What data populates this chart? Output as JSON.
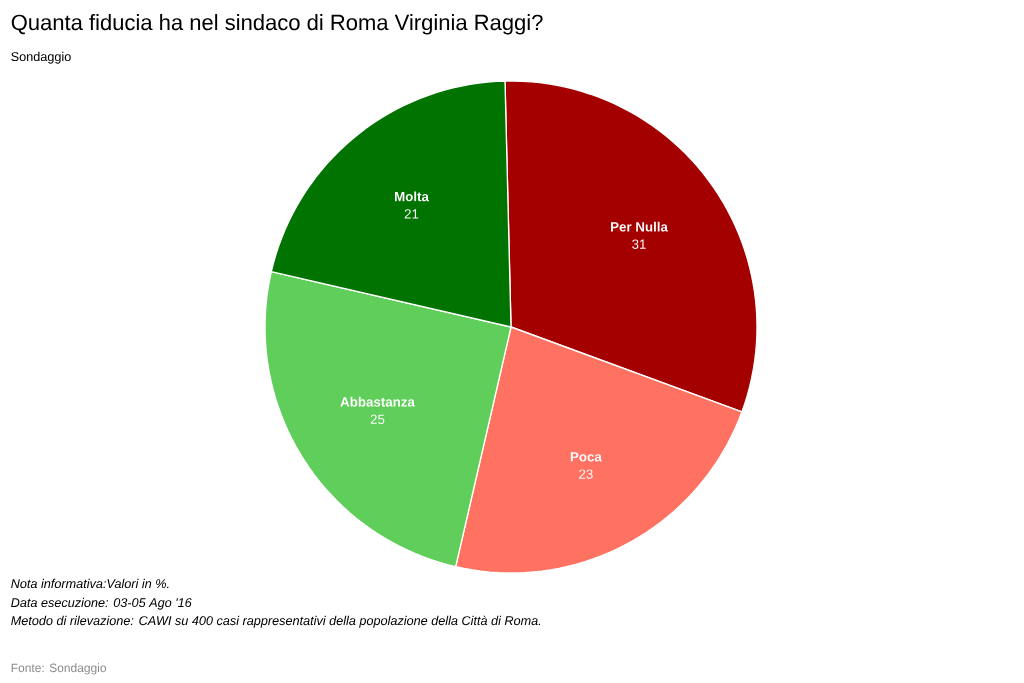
{
  "chart_data": {
    "type": "pie",
    "title": "Quanta fiducia ha nel sindaco di Roma Virginia Raggi?",
    "subtitle": "Sondaggio",
    "categories": [
      "Per Nulla",
      "Poca",
      "Abbastanza",
      "Molta"
    ],
    "values": [
      31,
      23,
      25,
      21
    ],
    "colors": [
      "#a50000",
      "#ff7262",
      "#5fce5a",
      "#007300"
    ],
    "data_labels": true,
    "annotations": [
      "Nota informativa:Valori in %.",
      "Data esecuzione: 03-05 Ago '16",
      "Metodo di rilevazione: CAWI su 400 casi rappresentativi della popolazione della Città di Roma.",
      "Fonte: Sondaggio"
    ]
  }
}
